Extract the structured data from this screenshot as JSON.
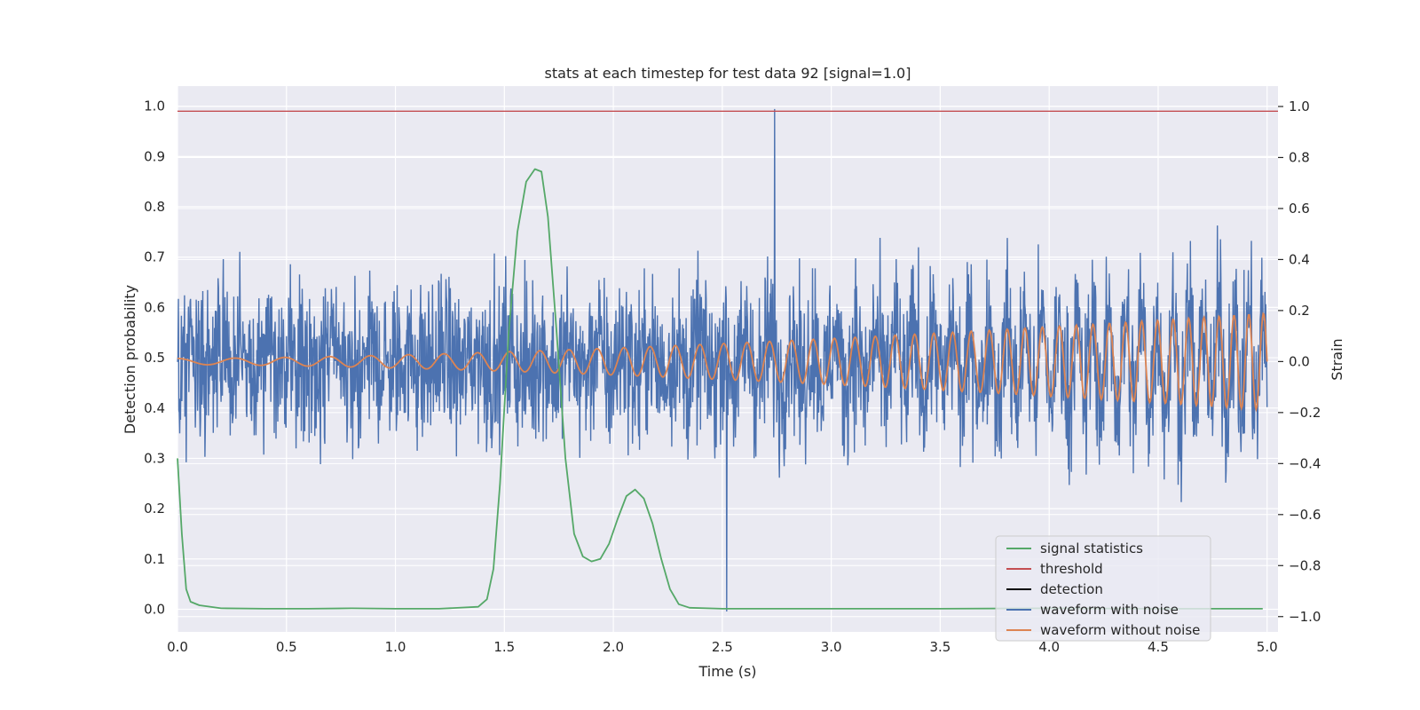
{
  "chart_data": {
    "type": "line",
    "title": "stats at each timestep for test data 92 [signal=1.0]",
    "xlabel": "Time (s)",
    "ylabel_left": "Detection probability",
    "ylabel_right": "Strain",
    "xlim": [
      0.0,
      5.05
    ],
    "ylim_left": [
      -0.045,
      1.04
    ],
    "ylim_right": [
      -1.06,
      1.08
    ],
    "xticks": [
      "0.0",
      "0.5",
      "1.0",
      "1.5",
      "2.0",
      "2.5",
      "3.0",
      "3.5",
      "4.0",
      "4.5",
      "5.0"
    ],
    "yticks_left": [
      "0.0",
      "0.1",
      "0.2",
      "0.3",
      "0.4",
      "0.5",
      "0.6",
      "0.7",
      "0.8",
      "0.9",
      "1.0"
    ],
    "yticks_right": [
      "−1.0",
      "−0.8",
      "−0.6",
      "−0.4",
      "−0.2",
      "0.0",
      "0.2",
      "0.4",
      "0.6",
      "0.8",
      "1.0"
    ],
    "grid": true,
    "legend_position": "bottom-right",
    "threshold": 0.99,
    "signal_statistics": {
      "name": "signal statistics",
      "color": "#55a868",
      "x": [
        0.0,
        0.02,
        0.04,
        0.06,
        0.1,
        0.2,
        0.4,
        0.6,
        0.8,
        1.0,
        1.2,
        1.38,
        1.42,
        1.45,
        1.48,
        1.52,
        1.56,
        1.6,
        1.64,
        1.67,
        1.7,
        1.74,
        1.78,
        1.82,
        1.86,
        1.9,
        1.94,
        1.98,
        2.02,
        2.06,
        2.1,
        2.14,
        2.18,
        2.22,
        2.26,
        2.3,
        2.35,
        2.5,
        3.0,
        3.5,
        4.0,
        4.5,
        4.98
      ],
      "y": [
        0.3,
        0.15,
        0.04,
        0.015,
        0.008,
        0.002,
        0.001,
        0.001,
        0.002,
        0.001,
        0.001,
        0.005,
        0.02,
        0.08,
        0.25,
        0.55,
        0.75,
        0.85,
        0.875,
        0.87,
        0.78,
        0.55,
        0.3,
        0.15,
        0.105,
        0.095,
        0.1,
        0.13,
        0.18,
        0.225,
        0.238,
        0.22,
        0.17,
        0.1,
        0.04,
        0.01,
        0.003,
        0.001,
        0.001,
        0.001,
        0.002,
        0.001,
        0.001
      ]
    },
    "waveform_without_noise": {
      "name": "waveform without noise",
      "color": "#dd8452",
      "t_range": [
        0.0,
        5.0
      ],
      "amplitude_start": 0.012,
      "amplitude_end": 0.19,
      "freq_start_hz": 3.5,
      "freq_end_hz": 15.0
    },
    "waveform_with_noise": {
      "name": "waveform with noise",
      "color": "#4c72b0",
      "t_range": [
        0.0,
        5.0
      ],
      "noise_amplitude": 0.3,
      "peak_max": 0.99,
      "peak_min": -0.98
    },
    "legend": [
      {
        "label": "signal statistics",
        "color": "#55a868"
      },
      {
        "label": "threshold",
        "color": "#c44e52"
      },
      {
        "label": "detection",
        "color": "#000000"
      },
      {
        "label": "waveform with noise",
        "color": "#4c72b0"
      },
      {
        "label": "waveform without noise",
        "color": "#dd8452"
      }
    ],
    "colors": {
      "plot_background": "#eaeaf2",
      "grid": "#ffffff",
      "threshold": "#c44e52"
    }
  }
}
